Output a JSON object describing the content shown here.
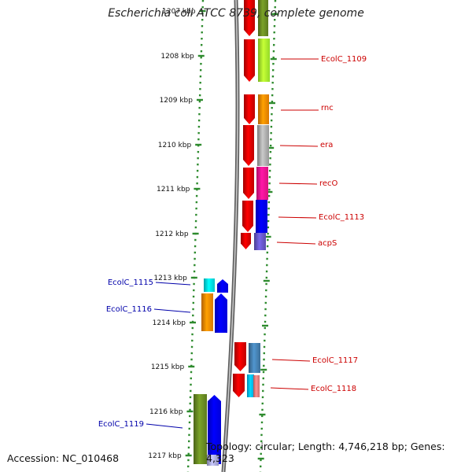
{
  "title": "Escherichia coli ATCC 8739, complete genome",
  "footer": {
    "accession": "Accession: NC_010468",
    "topology": "Topology: circular; Length: 4,746,218 bp; Genes: 4,323"
  },
  "colors": {
    "background": "#ffffff",
    "tick": "#2e8b2e",
    "backbone": "#808080",
    "right_label": "#cc0000",
    "left_label": "#0000aa"
  },
  "ticks": [
    "1207 kbp",
    "1208 kbp",
    "1209 kbp",
    "1210 kbp",
    "1211 kbp",
    "1212 kbp",
    "1213 kbp",
    "1214 kbp",
    "1215 kbp",
    "1216 kbp",
    "1217 kbp"
  ],
  "gene_labels": [
    "EcolC_1109",
    "rnc",
    "era",
    "recO",
    "EcolC_1113",
    "acpS",
    "EcolC_1115",
    "EcolC_1116",
    "EcolC_1117",
    "EcolC_1118",
    "EcolC_1119"
  ]
}
